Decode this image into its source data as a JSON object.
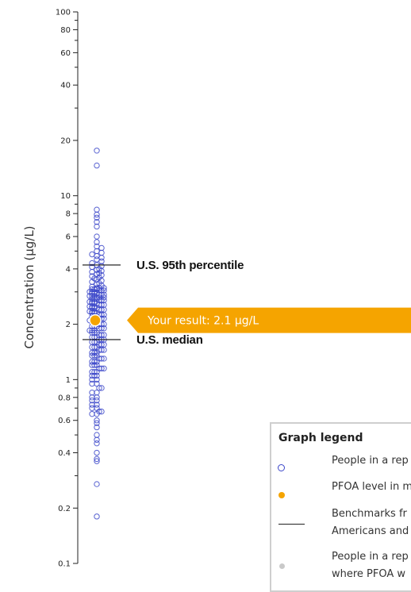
{
  "chart_data": {
    "type": "scatter",
    "title": "",
    "ylabel": "Concentration (µg/L)",
    "xlabel": "",
    "yscale": "log",
    "ylim": [
      0.1,
      100
    ],
    "yticks_major": [
      {
        "value": 0.1,
        "label": "0.1"
      },
      {
        "value": 0.2,
        "label": "0.2"
      },
      {
        "value": 0.4,
        "label": "0.4"
      },
      {
        "value": 0.6,
        "label": "0.6"
      },
      {
        "value": 0.8,
        "label": "0.8"
      },
      {
        "value": 1,
        "label": "1"
      },
      {
        "value": 2,
        "label": "2"
      },
      {
        "value": 4,
        "label": "4"
      },
      {
        "value": 6,
        "label": "6"
      },
      {
        "value": 8,
        "label": "8"
      },
      {
        "value": 10,
        "label": "10"
      },
      {
        "value": 20,
        "label": "20"
      },
      {
        "value": 40,
        "label": "40"
      },
      {
        "value": 60,
        "label": "60"
      },
      {
        "value": 80,
        "label": "80"
      },
      {
        "value": 100,
        "label": "100"
      }
    ],
    "yticks_minor": [
      0.3,
      0.5,
      0.7,
      0.9,
      3,
      5,
      7,
      9,
      30,
      50,
      70,
      90
    ],
    "grid": false,
    "series": [
      {
        "kind": "population",
        "marker": "hollow-circle",
        "color": "#3b46c9",
        "points": [
          17.6,
          14.6,
          8.4,
          7.9,
          7.6,
          7.2,
          6.8,
          6.0,
          5.6,
          5.3,
          5.2,
          5.0,
          4.9,
          4.8,
          4.7,
          4.6,
          4.5,
          4.4,
          4.3,
          4.2,
          4.15,
          4.1,
          4.0,
          3.95,
          3.9,
          3.85,
          3.8,
          3.75,
          3.7,
          3.65,
          3.6,
          3.55,
          3.5,
          3.45,
          3.4,
          3.35,
          3.3,
          3.25,
          3.2,
          3.15,
          3.1,
          3.05,
          3.0,
          2.95,
          2.9,
          2.85,
          2.8,
          2.75,
          2.7,
          2.65,
          2.6,
          2.55,
          2.5,
          2.45,
          2.4,
          2.35,
          2.3,
          2.25,
          2.2,
          2.15,
          2.1,
          2.05,
          2.0,
          1.95,
          1.9,
          1.85,
          1.8,
          1.75,
          1.7,
          1.65,
          1.6,
          1.55,
          1.5,
          1.45,
          1.4,
          1.35,
          1.3,
          1.25,
          1.2,
          1.15,
          1.1,
          1.05,
          1.0,
          0.95,
          0.9,
          0.85,
          0.8,
          0.77,
          0.73,
          0.7,
          0.67,
          0.65,
          0.6,
          0.58,
          0.55,
          0.5,
          0.47,
          0.45,
          0.4,
          0.37,
          0.36,
          0.27,
          0.18
        ]
      },
      {
        "kind": "your-result",
        "marker": "filled-circle",
        "color": "#f5a400",
        "value": 2.1
      }
    ],
    "benchmarks": [
      {
        "value": 4.2,
        "label": "U.S. 95th percentile"
      },
      {
        "value": 1.65,
        "label": "U.S. median"
      }
    ],
    "annotation": {
      "value": 2.1,
      "label": "Your result: 2.1 µg/L"
    }
  },
  "legend": {
    "title": "Graph legend",
    "items": [
      {
        "icon": "hollow-blue-circle",
        "lines": [
          "People in a rep"
        ]
      },
      {
        "icon": "orange-dot",
        "lines": [
          "PFOA level in m"
        ]
      },
      {
        "icon": "black-line",
        "lines": [
          "Benchmarks fr",
          "Americans and"
        ]
      },
      {
        "icon": "grey-dot",
        "lines": [
          "People in a rep",
          "where PFOA w"
        ]
      }
    ]
  }
}
